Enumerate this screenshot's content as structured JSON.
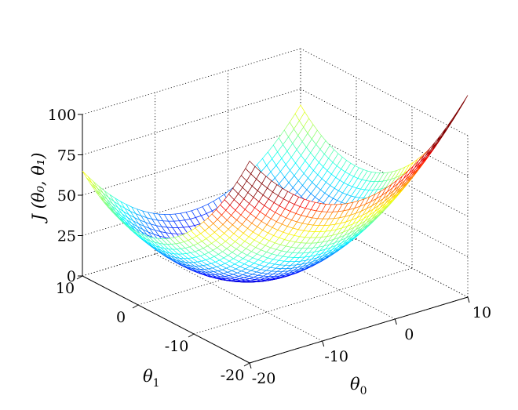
{
  "chart_data": {
    "type": "surface-mesh",
    "colormap": "jet",
    "function": "J(θ0, θ1) = (θ0 + 5)^2 / 5 + θ1^2 / 5",
    "x": {
      "label_main": "θ",
      "label_sub": "0",
      "range": [
        -20,
        10
      ],
      "ticks": [
        -20,
        -10,
        0,
        10
      ],
      "tick_labels": [
        "-20",
        "-10",
        "0",
        "10"
      ]
    },
    "y": {
      "label_main": "θ",
      "label_sub": "1",
      "range": [
        -20,
        10
      ],
      "ticks": [
        -20,
        -10,
        0,
        10
      ],
      "tick_labels": [
        "-20",
        "-10",
        "0",
        "10"
      ]
    },
    "z": {
      "label": "J (θ₀, θ₁)",
      "range": [
        0,
        100
      ],
      "ticks": [
        0,
        25,
        50,
        75,
        100
      ],
      "tick_labels": [
        "0",
        "25",
        "50",
        "75",
        "100"
      ]
    },
    "grid": true,
    "mesh_resolution": 41,
    "sample_points": [
      {
        "theta0": -5,
        "theta1": 0,
        "J": 0
      },
      {
        "theta0": -20,
        "theta1": -20,
        "J": 125
      },
      {
        "theta0": 10,
        "theta1": 10,
        "J": 65
      },
      {
        "theta0": 10,
        "theta1": -20,
        "J": 125
      },
      {
        "theta0": -20,
        "theta1": 10,
        "J": 65
      }
    ]
  }
}
